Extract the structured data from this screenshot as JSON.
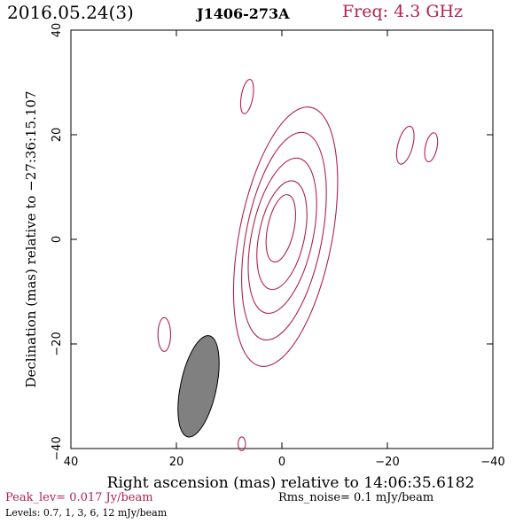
{
  "header": {
    "date": "2016.05.24(3)",
    "source": "J1406-273A",
    "freq": "Freq: 4.3 GHz"
  },
  "footer": {
    "peak": "Peak_lev=  0.017 Jy/beam",
    "rms": "Rms_noise=  0.1 mJy/beam",
    "levels": "Levels: 0.7,   1,   3,   6,   12 mJy/beam"
  },
  "colors": {
    "contour": "#b2224c",
    "beam": "#808080",
    "accent": "#b2224c"
  },
  "chart_data": {
    "type": "contour",
    "xlabel": "Right ascension (mas) relative to 14:06:35.6182",
    "ylabel": "Declination (mas) relative to −27:36:15.107",
    "xlim": [
      40,
      -40
    ],
    "ylim": [
      -40,
      40
    ],
    "xticks": [
      40,
      20,
      0,
      -20,
      -40
    ],
    "yticks": [
      -40,
      -20,
      0,
      20,
      40
    ],
    "xtick_labels": [
      "40",
      "20",
      "0",
      "−20",
      "−40"
    ],
    "ytick_labels": [
      "−40",
      "−20",
      "0",
      "20",
      "40"
    ],
    "levels_mJy": [
      0.7,
      1,
      3,
      6,
      12
    ],
    "contours": [
      {
        "level": 0.7,
        "center": [
          -0.7,
          0.5
        ],
        "a": 25.0,
        "b": 8.8,
        "pa_deg": -11
      },
      {
        "level": 1,
        "center": [
          -0.4,
          0.6
        ],
        "a": 20.0,
        "b": 7.2,
        "pa_deg": -11
      },
      {
        "level": 3,
        "center": [
          -0.1,
          0.7
        ],
        "a": 15.0,
        "b": 5.8,
        "pa_deg": -12
      },
      {
        "level": 6,
        "center": [
          0.0,
          0.8
        ],
        "a": 10.5,
        "b": 4.3,
        "pa_deg": -12
      },
      {
        "level": 12,
        "center": [
          0.2,
          2.1
        ],
        "a": 6.5,
        "b": 2.5,
        "pa_deg": -12
      }
    ],
    "noise_blobs": [
      {
        "center": [
          6.6,
          27.3
        ],
        "a": 3.3,
        "b": 1.1,
        "pa_deg": -10
      },
      {
        "center": [
          -23.4,
          18.0
        ],
        "a": 3.7,
        "b": 1.4,
        "pa_deg": -15
      },
      {
        "center": [
          -28.3,
          17.6
        ],
        "a": 2.8,
        "b": 1.1,
        "pa_deg": -12
      },
      {
        "center": [
          22.3,
          -18.2
        ],
        "a": 3.2,
        "b": 1.2,
        "pa_deg": 0
      },
      {
        "center": [
          7.6,
          -39.1
        ],
        "a": 1.3,
        "b": 0.7,
        "pa_deg": 0
      }
    ],
    "beam": {
      "center": [
        15.8,
        -28.1
      ],
      "a": 9.8,
      "b": 3.4,
      "pa_deg": -12
    }
  }
}
